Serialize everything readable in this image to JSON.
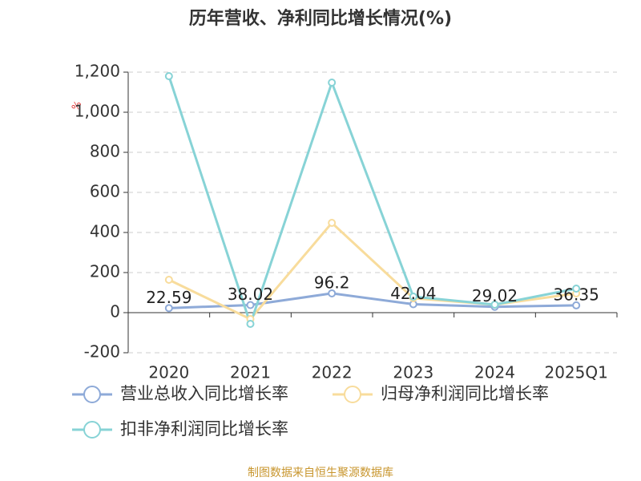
{
  "chart_data": {
    "type": "line",
    "title": "历年营收、净利同比增长情况(%)",
    "y_label": "%",
    "source": "制图数据来自恒生聚源数据库",
    "categories": [
      "2020",
      "2021",
      "2022",
      "2023",
      "2024",
      "2025Q1"
    ],
    "series": [
      {
        "name": "营业总收入同比增长率",
        "color": "#8eaad8",
        "values": [
          22.59,
          38.02,
          96.2,
          42.04,
          29.02,
          36.35
        ],
        "show_labels": true
      },
      {
        "name": "归母净利润同比增长率",
        "color": "#f8dc9c",
        "values": [
          164,
          -32,
          448,
          72,
          40,
          96
        ]
      },
      {
        "name": "扣非净利润同比增长率",
        "color": "#87d3d6",
        "values": [
          1180,
          -56,
          1148,
          80,
          40,
          120
        ]
      }
    ],
    "ylim": [
      -200,
      1200
    ],
    "yticks": [
      -200,
      0,
      200,
      400,
      600,
      800,
      {
        "value": 1000,
        "label": "1,000"
      },
      {
        "value": 1200,
        "label": "1,200"
      }
    ],
    "grid": true
  }
}
